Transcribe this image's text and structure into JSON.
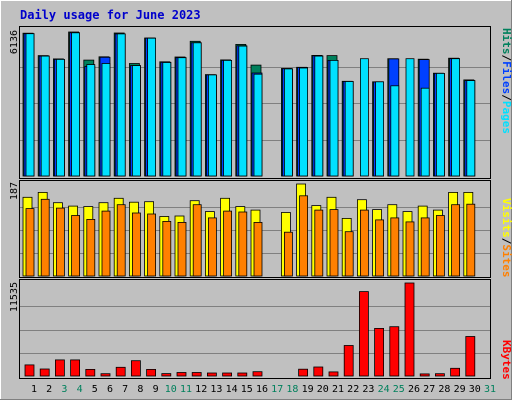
{
  "title": "Daily usage for June 2023",
  "colors": {
    "background": "#c0c0c0",
    "title": "#0000cc",
    "hits": "#00805c",
    "files": "#0040ff",
    "pages": "#00e0ff",
    "visits": "#ffff00",
    "sites": "#ff8000",
    "kbytes": "#ff0000",
    "weekend_label": "#00805c",
    "weekday_label": "#000000"
  },
  "legend_top": {
    "pages": "Pages",
    "files": "Files",
    "hits": "Hits",
    "sep": "/"
  },
  "legend_mid": {
    "sites": "Sites",
    "visits": "Visits",
    "sep": "/"
  },
  "legend_bot": {
    "kbytes": "KBytes"
  },
  "max_labels": {
    "hits": "6136",
    "visits": "187",
    "kbytes": "11535"
  },
  "chart_data": {
    "type": "bar",
    "title": "Daily usage for June 2023",
    "categories": [
      "1",
      "2",
      "3",
      "4",
      "5",
      "6",
      "7",
      "8",
      "9",
      "10",
      "11",
      "12",
      "13",
      "14",
      "15",
      "16",
      "17",
      "18",
      "19",
      "20",
      "21",
      "22",
      "23",
      "24",
      "25",
      "26",
      "27",
      "28",
      "29",
      "30",
      "31"
    ],
    "weekend_days": [
      "3",
      "4",
      "10",
      "11",
      "17",
      "18",
      "24",
      "25",
      "31"
    ],
    "panels": [
      {
        "name": "hits-files-pages",
        "ylim": [
          0,
          6136
        ],
        "series": [
          {
            "name": "Hits",
            "values": [
              6000,
              5060,
              4920,
              6050,
              4870,
              5010,
              6010,
              4730,
              5800,
              4800,
              5000,
              5660,
              4260,
              4880,
              5530,
              4660,
              0,
              4520,
              4570,
              5070,
              5060,
              3980,
              0,
              3960,
              4930,
              0,
              4910,
              4320,
              4950,
              4040,
              0
            ]
          },
          {
            "name": "Files",
            "values": [
              5980,
              5040,
              4900,
              6020,
              4600,
              4990,
              5970,
              4640,
              5790,
              4780,
              4970,
              5600,
              4250,
              4860,
              5470,
              4330,
              0,
              4510,
              4560,
              5050,
              4860,
              3970,
              0,
              3950,
              4920,
              0,
              4890,
              4310,
              4930,
              4010,
              0
            ]
          },
          {
            "name": "Pages",
            "values": [
              5980,
              5040,
              4900,
              6020,
              4680,
              4730,
              5970,
              4640,
              5790,
              4770,
              4970,
              5600,
              4250,
              4860,
              5460,
              4280,
              0,
              4500,
              4540,
              5040,
              4860,
              3970,
              4930,
              3960,
              3790,
              4930,
              3690,
              4310,
              4930,
              4010,
              0
            ]
          }
        ]
      },
      {
        "name": "visits-sites",
        "ylim": [
          0,
          187
        ],
        "series": [
          {
            "name": "Visits",
            "values": [
              160,
              170,
              149,
              142,
              141,
              149,
              158,
              150,
              151,
              121,
              122,
              153,
              131,
              158,
              141,
              134,
              0,
              129,
              187,
              143,
              160,
              117,
              155,
              135,
              145,
              131,
              142,
              134,
              170,
              170,
              0
            ]
          },
          {
            "name": "Sites",
            "values": [
              137,
              156,
              138,
              123,
              115,
              132,
              145,
              128,
              126,
              111,
              109,
              145,
              118,
              132,
              130,
              109,
              0,
              89,
              163,
              134,
              135,
              90,
              134,
              114,
              118,
              110,
              118,
              123,
              145,
              146,
              0
            ]
          }
        ]
      },
      {
        "name": "kbytes",
        "ylim": [
          0,
          11535
        ],
        "series": [
          {
            "name": "KBytes",
            "values": [
              1380,
              870,
              2000,
              2000,
              820,
              280,
              1080,
              1900,
              820,
              300,
              430,
              430,
              370,
              370,
              370,
              530,
              0,
              0,
              840,
              1120,
              510,
              3780,
              10470,
              5910,
              6120,
              11535,
              260,
              290,
              950,
              4900,
              0
            ]
          }
        ]
      }
    ]
  }
}
